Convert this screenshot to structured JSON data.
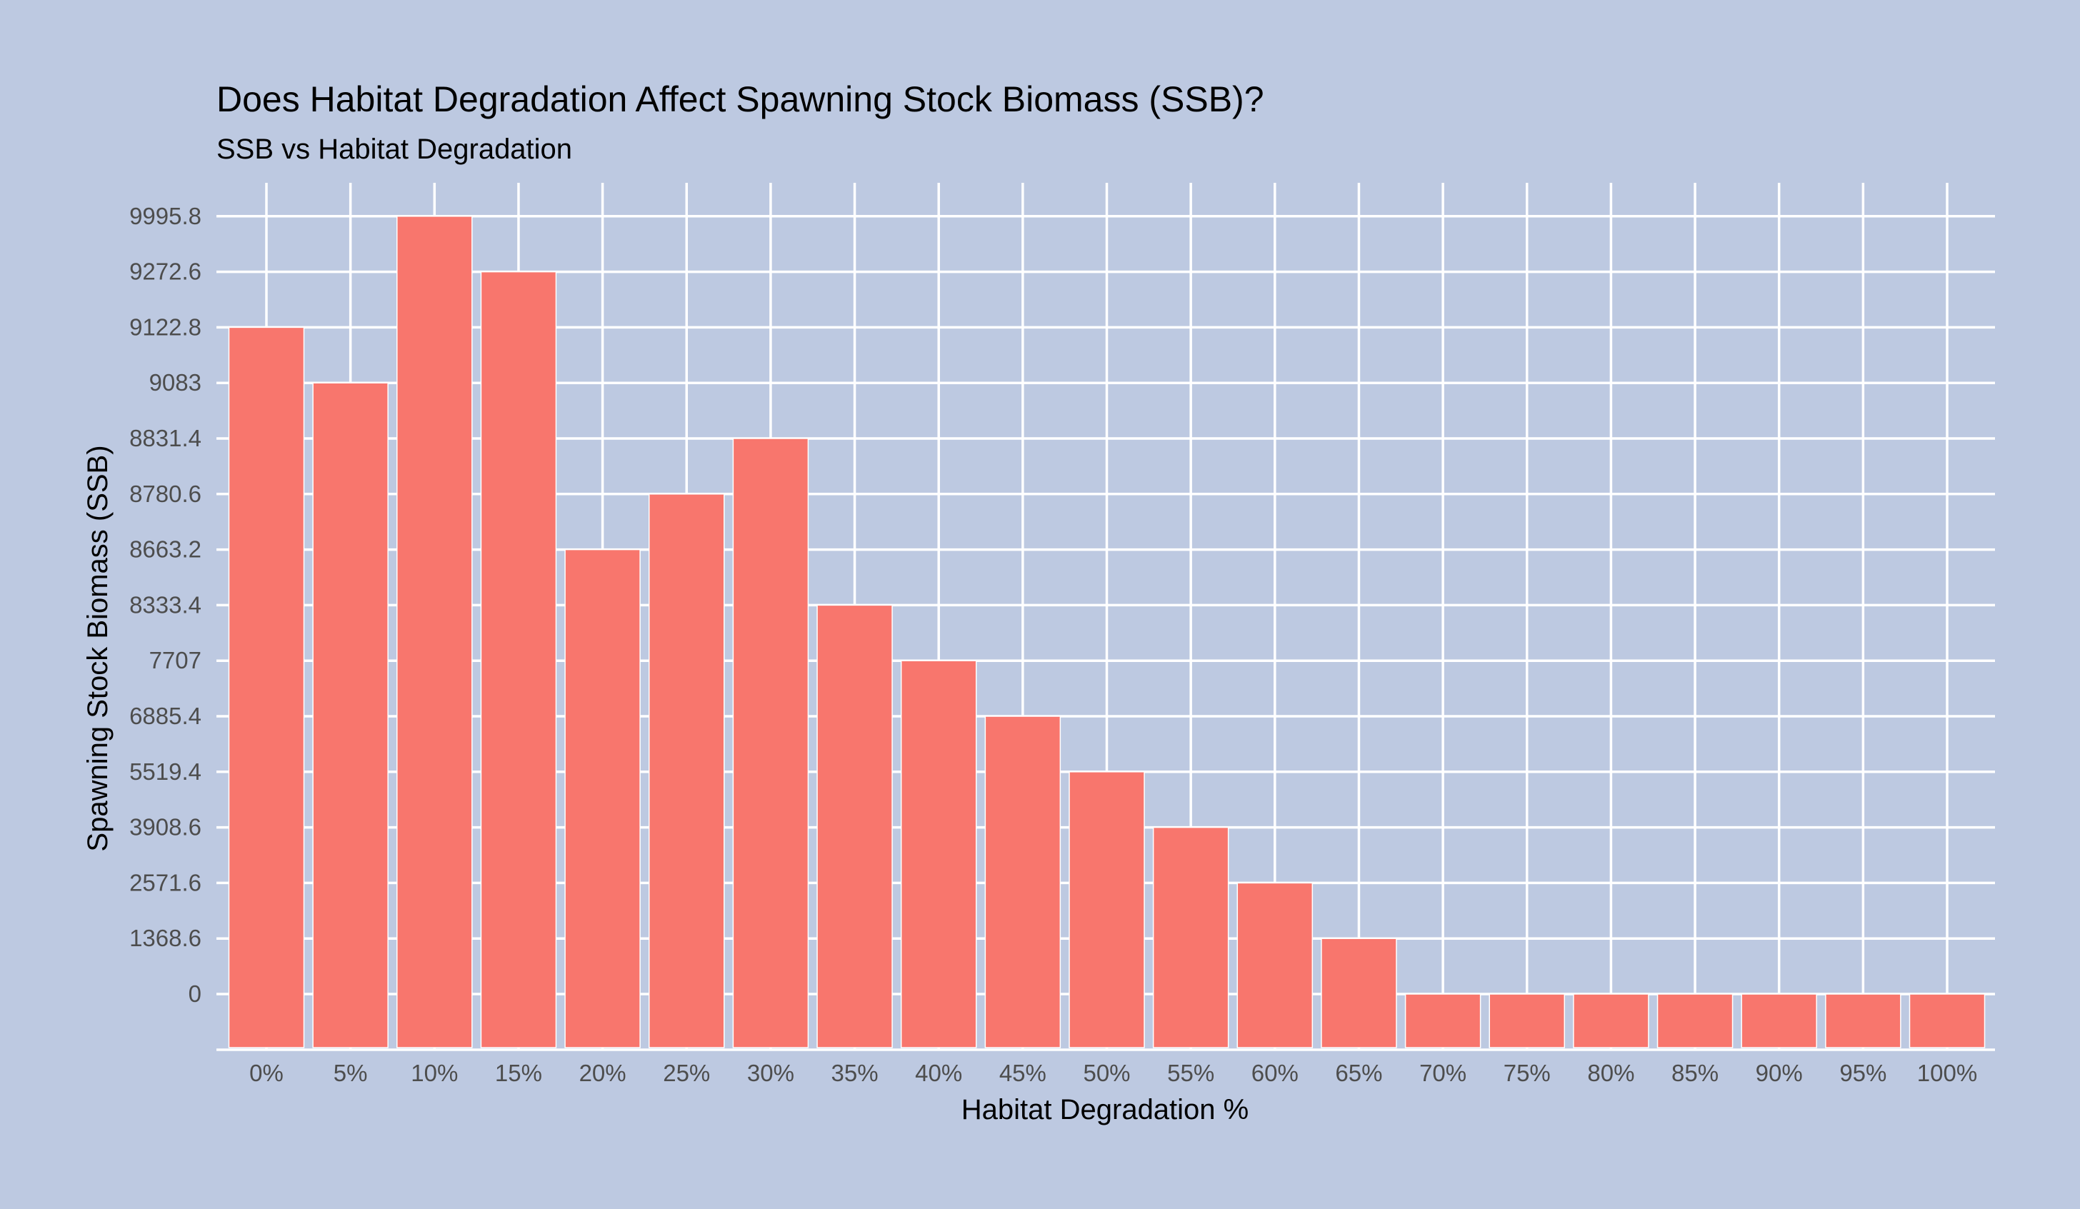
{
  "colors": {
    "background": "#BDC9E1",
    "bar_fill": "#F8766D",
    "grid": "#FFFFFF"
  },
  "chart_data": {
    "type": "bar",
    "title": "Does Habitat Degradation Affect Spawning Stock Biomass (SSB)?",
    "subtitle": "SSB vs Habitat Degradation",
    "xlabel": "Habitat Degradation %",
    "ylabel": "Spawning Stock Biomass (SSB)",
    "y_scale": "discrete",
    "y_tick_labels": [
      "0",
      "1368.6",
      "2571.6",
      "3908.6",
      "5519.4",
      "6885.4",
      "7707",
      "8333.4",
      "8663.2",
      "8780.6",
      "8831.4",
      "9083",
      "9122.8",
      "9272.6",
      "9995.8"
    ],
    "categories": [
      "0%",
      "5%",
      "10%",
      "15%",
      "20%",
      "25%",
      "30%",
      "35%",
      "40%",
      "45%",
      "50%",
      "55%",
      "60%",
      "65%",
      "70%",
      "75%",
      "80%",
      "85%",
      "90%",
      "95%",
      "100%"
    ],
    "values": [
      9122.8,
      9083,
      9995.8,
      9272.6,
      8663.2,
      8780.6,
      8831.4,
      8333.4,
      7707,
      6885.4,
      5519.4,
      3908.6,
      2571.6,
      1368.6,
      0,
      0,
      0,
      0,
      0,
      0,
      0
    ],
    "grid": true,
    "legend": "none"
  }
}
